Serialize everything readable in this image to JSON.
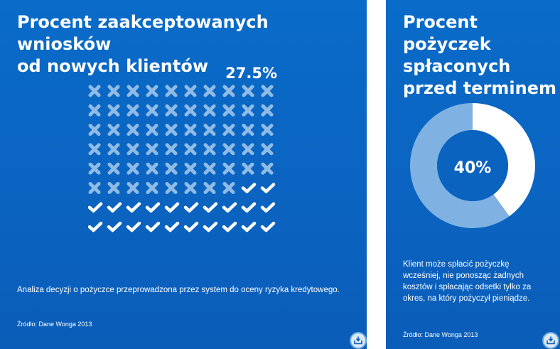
{
  "colors": {
    "panel_bg": "#0a67c4",
    "cross": "#8fbbe6",
    "check": "#ffffff",
    "donut_accepted": "#ffffff",
    "donut_rest": "#7fb2e2",
    "donut_center": "#0b63c0"
  },
  "left": {
    "title_line1": "Procent zaakceptowanych wniosków",
    "title_line2": "od nowych klientów",
    "percent_label": "27.5%",
    "caption": "Analiza decyzji o pożyczce przeprowadzona przez system do oceny ryzyka kredytowego.",
    "source": "Źródło: Dane Wonga 2013",
    "download_icon": "download-tray-icon"
  },
  "right": {
    "title_line1": "Procent",
    "title_line2": "pożyczek",
    "title_line3": "spłaconych",
    "title_line4": "przed terminem",
    "percent_label": "40%",
    "caption": "Klient może spłacić pożyczkę wcześniej, nie ponosząc żadnych kosztów i spłacając odsetki tylko za okres, na który pożyczył pieniądze.",
    "source": "Źródło: Dane Wonga 2013",
    "download_icon": "download-tray-icon"
  },
  "chart_data": [
    {
      "type": "pictogram",
      "title": "Procent zaakceptowanych wniosków od nowych klientów",
      "total_icons": 80,
      "columns": 10,
      "rows": 8,
      "value_percent": 27.5,
      "accepted_icon": "check-icon",
      "rejected_icon": "cross-icon"
    },
    {
      "type": "pie",
      "variant": "donut",
      "title": "Procent pożyczek spłaconych przed terminem",
      "value_percent": 40,
      "center_label": "40%"
    }
  ]
}
